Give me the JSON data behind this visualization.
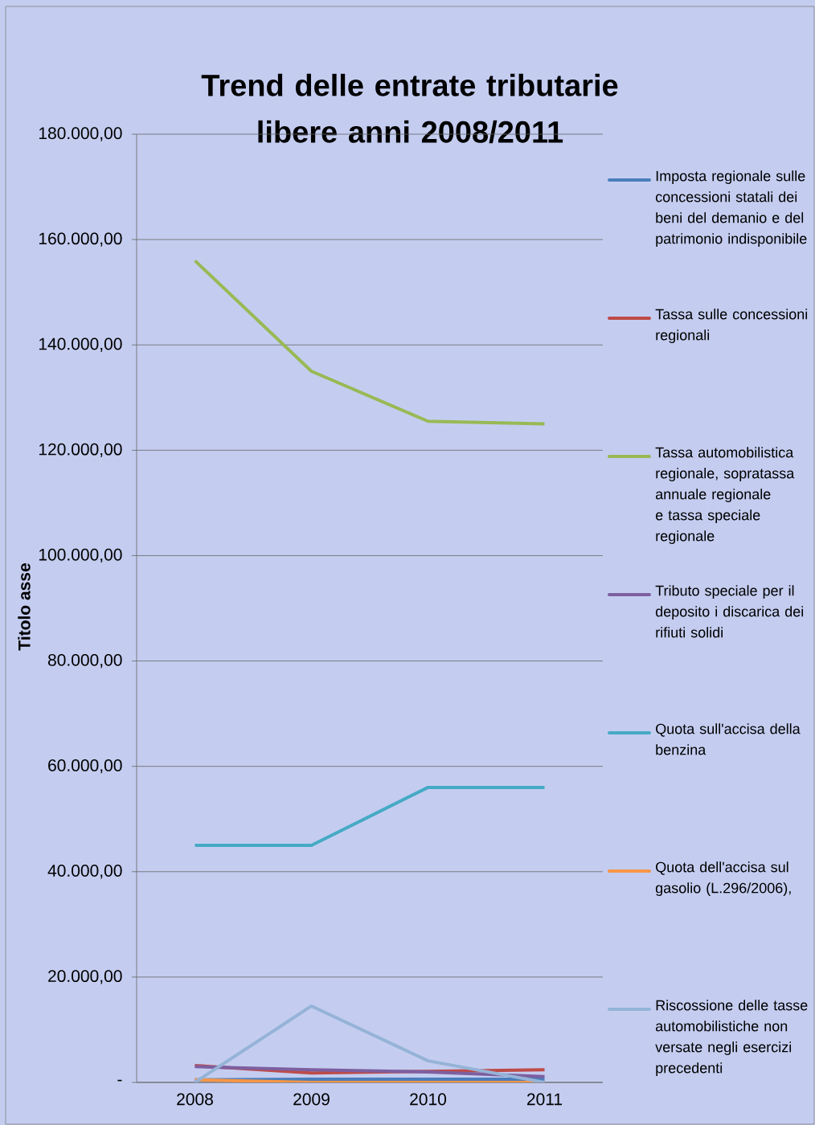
{
  "chart_data": {
    "type": "line",
    "title": "Trend delle entrate tributarie libere anni 2008/2011",
    "ylabel": "Titolo asse",
    "categories": [
      "2008",
      "2009",
      "2010",
      "2011"
    ],
    "series": [
      {
        "name": "Imposta regionale sulle concessioni statali dei beni del demanio e del patrimonio indisponibile",
        "color": "#4a7ebb",
        "values": [
          500,
          600,
          600,
          600
        ]
      },
      {
        "name": "Tassa sulle concessioni regionali",
        "color": "#be4b48",
        "values": [
          3200,
          1800,
          2100,
          2400
        ]
      },
      {
        "name": "Tassa automobilistica regionale, sopratassa annuale regionale e tassa speciale regionale",
        "color": "#98b954",
        "values": [
          156000,
          135000,
          125500,
          125000
        ]
      },
      {
        "name": "Tributo speciale per il deposito i  discarica dei rifiuti solidi",
        "color": "#7d5fa0",
        "values": [
          3000,
          2400,
          2000,
          1100
        ]
      },
      {
        "name": "Quota sull'accisa della benzina",
        "color": "#46aac5",
        "values": [
          45000,
          45000,
          56000,
          56000
        ]
      },
      {
        "name": "Quota dell'accisa sul gasolio (L.296/2006),",
        "color": "#f79646",
        "values": [
          500,
          0,
          0,
          0
        ]
      },
      {
        "name": "Riscossione  delle tasse automobilistiche non versate negli esercizi precedenti",
        "color": "#95b3d7",
        "values": [
          0,
          14500,
          4100,
          0
        ]
      }
    ],
    "ylim": [
      0,
      180000
    ],
    "yticks": [
      {
        "value": 0,
        "label": "-"
      },
      {
        "value": 20000,
        "label": "20.000,00"
      },
      {
        "value": 40000,
        "label": "40.000,00"
      },
      {
        "value": 60000,
        "label": "60.000,00"
      },
      {
        "value": 80000,
        "label": "80.000,00"
      },
      {
        "value": 100000,
        "label": "100.000,00"
      },
      {
        "value": 120000,
        "label": "120.000,00"
      },
      {
        "value": 140000,
        "label": "140.000,00"
      },
      {
        "value": 160000,
        "label": "160.000,00"
      },
      {
        "value": 180000,
        "label": "180.000,00"
      }
    ],
    "grid": "y",
    "legend": "right",
    "marker": "none",
    "line_style": "solid"
  }
}
